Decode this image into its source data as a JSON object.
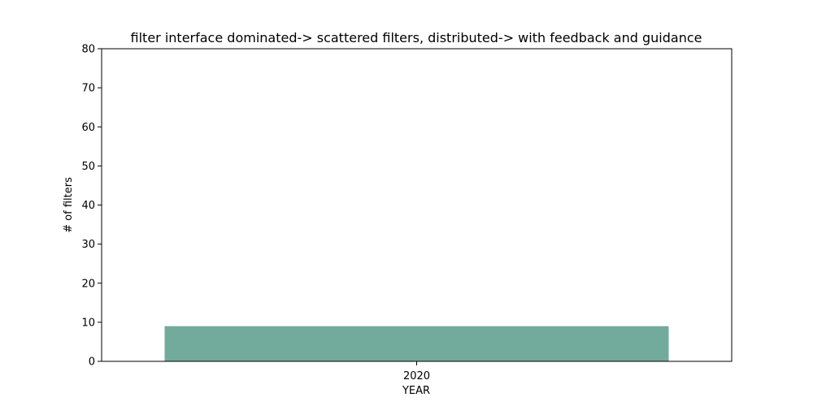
{
  "chart_data": {
    "type": "bar",
    "title": "filter interface dominated-> scattered filters, distributed-> with feedback and guidance",
    "xlabel": "YEAR",
    "ylabel": "# of filters",
    "categories": [
      "2020"
    ],
    "values": [
      9
    ],
    "ylim": [
      0,
      80
    ],
    "yticks": [
      0,
      10,
      20,
      30,
      40,
      50,
      60,
      70,
      80
    ],
    "grid": false,
    "bar_color": "#72aa9b"
  }
}
